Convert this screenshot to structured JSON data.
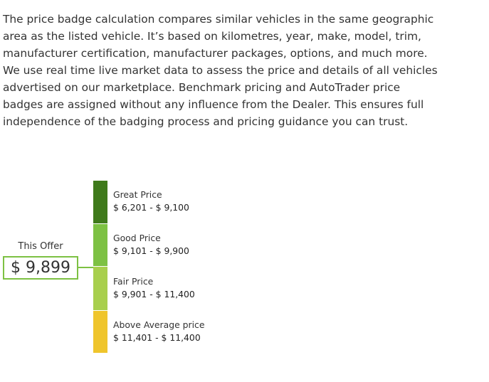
{
  "description": "The price badge calculation compares similar vehicles in the same geographic area as the listed vehicle. It’s based on kilometres, year, make, model, trim, manufacturer certification, manufacturer packages, options, and much more. We use real time live market data to assess the price and details of all vehicles advertised on our marketplace. Benchmark pricing and AutoTrader price badges are assigned without any influence from the Dealer. This ensures full independence of the badging process and pricing guidance you can trust.",
  "offer": {
    "label": "This Offer",
    "price": "$ 9,899",
    "color": "#7dc143"
  },
  "tiers": [
    {
      "label": "Great Price",
      "range": "$ 6,201 - $ 9,100",
      "color": "#3f7a1b"
    },
    {
      "label": "Good Price",
      "range": "$ 9,101 - $ 9,900",
      "color": "#7dc143"
    },
    {
      "label": "Fair Price",
      "range": "$ 9,901 - $ 11,400",
      "color": "#a8cf4d"
    },
    {
      "label": "Above Average price",
      "range": "$ 11,401 - $ 11,400",
      "color": "#efc52c"
    }
  ]
}
